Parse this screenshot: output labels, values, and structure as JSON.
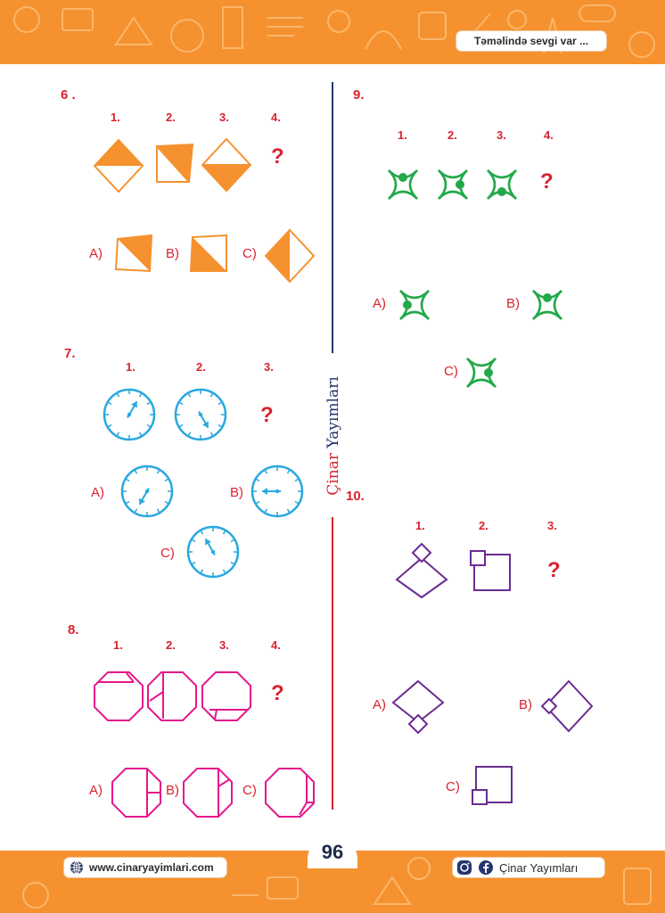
{
  "header": {
    "tagline": "Təməlində sevgi var ..."
  },
  "footer": {
    "website": "www.cinaryayimlari.com",
    "social": "Çinar Yayımları",
    "page_number": "96"
  },
  "brand": {
    "part1": "Çinar",
    "part2": "Yayımları"
  },
  "colors": {
    "orange": "#f5922f",
    "red": "#d8232e",
    "navy": "#25356e",
    "green": "#22a94a",
    "blue": "#29a8df",
    "magenta": "#e5178c",
    "purple": "#6a2c91"
  },
  "questions": [
    {
      "number": "6 .",
      "sequence_labels": [
        "1.",
        "2.",
        "3.",
        "4."
      ],
      "missing": "?",
      "options": [
        "A)",
        "B)",
        "C)"
      ]
    },
    {
      "number": "7.",
      "sequence_labels": [
        "1.",
        "2.",
        "3."
      ],
      "missing": "?",
      "options": [
        "A)",
        "B)",
        "C)"
      ]
    },
    {
      "number": "8.",
      "sequence_labels": [
        "1.",
        "2.",
        "3.",
        "4."
      ],
      "missing": "?",
      "options": [
        "A)",
        "B)",
        "C)"
      ]
    },
    {
      "number": "9.",
      "sequence_labels": [
        "1.",
        "2.",
        "3.",
        "4."
      ],
      "missing": "?",
      "options": [
        "A)",
        "B)",
        "C)"
      ]
    },
    {
      "number": "10.",
      "sequence_labels": [
        "1.",
        "2.",
        "3."
      ],
      "missing": "?",
      "options": [
        "A)",
        "B)",
        "C)"
      ]
    }
  ],
  "icons": [
    "globe-icon",
    "instagram-icon",
    "facebook-icon"
  ]
}
